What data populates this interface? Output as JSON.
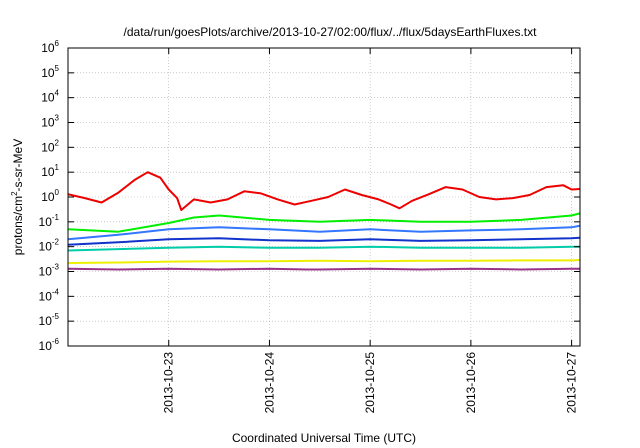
{
  "chart_data": {
    "type": "line",
    "title": "/data/run/goesPlots/archive/2013-10-27/02:00/flux/../flux/5daysEarthFluxes.txt",
    "xlabel": "Coordinated Universal Time (UTC)",
    "ylabel_base": "protons/cm",
    "ylabel_sup": "2",
    "ylabel_rest": "-s-sr-MeV",
    "x_range": [
      "2013-10-22T00:00",
      "2013-10-27T02:00"
    ],
    "y_scale": "log",
    "ylim": [
      1e-06,
      1000000.0
    ],
    "y_ticks": [
      {
        "base": "10",
        "exp": "-6",
        "value": 1e-06
      },
      {
        "base": "10",
        "exp": "-5",
        "value": 1e-05
      },
      {
        "base": "10",
        "exp": "-4",
        "value": 0.0001
      },
      {
        "base": "10",
        "exp": "-3",
        "value": 0.001
      },
      {
        "base": "10",
        "exp": "-2",
        "value": 0.01
      },
      {
        "base": "10",
        "exp": "-1",
        "value": 0.1
      },
      {
        "base": "10",
        "exp": "0",
        "value": 1
      },
      {
        "base": "10",
        "exp": "1",
        "value": 10.0
      },
      {
        "base": "10",
        "exp": "2",
        "value": 100.0
      },
      {
        "base": "10",
        "exp": "3",
        "value": 1000.0
      },
      {
        "base": "10",
        "exp": "4",
        "value": 10000.0
      },
      {
        "base": "10",
        "exp": "5",
        "value": 100000.0
      },
      {
        "base": "10",
        "exp": "6",
        "value": 1000000.0
      }
    ],
    "x_ticks": [
      {
        "label": "2013-10-23",
        "date": "2013-10-23T00:00"
      },
      {
        "label": "2013-10-24",
        "date": "2013-10-24T00:00"
      },
      {
        "label": "2013-10-25",
        "date": "2013-10-25T00:00"
      },
      {
        "label": "2013-10-26",
        "date": "2013-10-26T00:00"
      },
      {
        "label": "2013-10-27",
        "date": "2013-10-27T00:00"
      }
    ],
    "grid": true,
    "series": [
      {
        "color": "#ee0000",
        "points": [
          [
            "2013-10-22T00:00",
            1.3
          ],
          [
            "2013-10-22T04:00",
            0.9
          ],
          [
            "2013-10-22T08:00",
            0.6
          ],
          [
            "2013-10-22T12:00",
            1.5
          ],
          [
            "2013-10-22T16:00",
            5.0
          ],
          [
            "2013-10-22T19:00",
            10.0
          ],
          [
            "2013-10-22T22:00",
            6.0
          ],
          [
            "2013-10-23T00:00",
            2.0
          ],
          [
            "2013-10-23T02:00",
            0.9
          ],
          [
            "2013-10-23T03:00",
            0.3
          ],
          [
            "2013-10-23T06:00",
            0.8
          ],
          [
            "2013-10-23T10:00",
            0.6
          ],
          [
            "2013-10-23T14:00",
            0.8
          ],
          [
            "2013-10-23T18:00",
            1.7
          ],
          [
            "2013-10-23T22:00",
            1.4
          ],
          [
            "2013-10-24T02:00",
            0.8
          ],
          [
            "2013-10-24T06:00",
            0.5
          ],
          [
            "2013-10-24T10:00",
            0.7
          ],
          [
            "2013-10-24T14:00",
            1.0
          ],
          [
            "2013-10-24T18:00",
            2.0
          ],
          [
            "2013-10-24T22:00",
            1.2
          ],
          [
            "2013-10-25T02:00",
            0.8
          ],
          [
            "2013-10-25T05:00",
            0.5
          ],
          [
            "2013-10-25T07:00",
            0.35
          ],
          [
            "2013-10-25T10:00",
            0.7
          ],
          [
            "2013-10-25T14:00",
            1.3
          ],
          [
            "2013-10-25T18:00",
            2.5
          ],
          [
            "2013-10-25T22:00",
            2.0
          ],
          [
            "2013-10-26T02:00",
            1.0
          ],
          [
            "2013-10-26T06:00",
            0.8
          ],
          [
            "2013-10-26T10:00",
            0.9
          ],
          [
            "2013-10-26T14:00",
            1.2
          ],
          [
            "2013-10-26T18:00",
            2.5
          ],
          [
            "2013-10-26T22:00",
            3.0
          ],
          [
            "2013-10-27T00:00",
            2.0
          ],
          [
            "2013-10-27T02:00",
            2.1
          ]
        ]
      },
      {
        "color": "#00ee00",
        "points": [
          [
            "2013-10-22T00:00",
            0.05
          ],
          [
            "2013-10-22T12:00",
            0.04
          ],
          [
            "2013-10-23T00:00",
            0.09
          ],
          [
            "2013-10-23T06:00",
            0.15
          ],
          [
            "2013-10-23T12:00",
            0.18
          ],
          [
            "2013-10-24T00:00",
            0.12
          ],
          [
            "2013-10-24T12:00",
            0.1
          ],
          [
            "2013-10-25T00:00",
            0.12
          ],
          [
            "2013-10-25T12:00",
            0.1
          ],
          [
            "2013-10-26T00:00",
            0.1
          ],
          [
            "2013-10-26T12:00",
            0.12
          ],
          [
            "2013-10-27T00:00",
            0.18
          ],
          [
            "2013-10-27T02:00",
            0.22
          ]
        ]
      },
      {
        "color": "#3377ff",
        "points": [
          [
            "2013-10-22T00:00",
            0.02
          ],
          [
            "2013-10-22T12:00",
            0.03
          ],
          [
            "2013-10-23T00:00",
            0.05
          ],
          [
            "2013-10-23T12:00",
            0.06
          ],
          [
            "2013-10-24T00:00",
            0.05
          ],
          [
            "2013-10-24T12:00",
            0.04
          ],
          [
            "2013-10-25T00:00",
            0.05
          ],
          [
            "2013-10-25T12:00",
            0.04
          ],
          [
            "2013-10-26T00:00",
            0.045
          ],
          [
            "2013-10-26T12:00",
            0.05
          ],
          [
            "2013-10-27T00:00",
            0.06
          ],
          [
            "2013-10-27T02:00",
            0.07
          ]
        ]
      },
      {
        "color": "#1133cc",
        "points": [
          [
            "2013-10-22T00:00",
            0.012
          ],
          [
            "2013-10-22T12:00",
            0.015
          ],
          [
            "2013-10-23T00:00",
            0.02
          ],
          [
            "2013-10-23T12:00",
            0.022
          ],
          [
            "2013-10-24T00:00",
            0.018
          ],
          [
            "2013-10-24T12:00",
            0.017
          ],
          [
            "2013-10-25T00:00",
            0.02
          ],
          [
            "2013-10-25T12:00",
            0.017
          ],
          [
            "2013-10-26T00:00",
            0.018
          ],
          [
            "2013-10-26T12:00",
            0.02
          ],
          [
            "2013-10-27T00:00",
            0.022
          ],
          [
            "2013-10-27T02:00",
            0.023
          ]
        ]
      },
      {
        "color": "#00ccaa",
        "points": [
          [
            "2013-10-22T00:00",
            0.007
          ],
          [
            "2013-10-22T12:00",
            0.008
          ],
          [
            "2013-10-23T00:00",
            0.009
          ],
          [
            "2013-10-23T12:00",
            0.01
          ],
          [
            "2013-10-24T00:00",
            0.009
          ],
          [
            "2013-10-24T12:00",
            0.009
          ],
          [
            "2013-10-25T00:00",
            0.01
          ],
          [
            "2013-10-25T12:00",
            0.009
          ],
          [
            "2013-10-26T00:00",
            0.009
          ],
          [
            "2013-10-26T12:00",
            0.009
          ],
          [
            "2013-10-27T00:00",
            0.01
          ],
          [
            "2013-10-27T02:00",
            0.01
          ]
        ]
      },
      {
        "color": "#eeee00",
        "points": [
          [
            "2013-10-22T00:00",
            0.0022
          ],
          [
            "2013-10-22T12:00",
            0.0023
          ],
          [
            "2013-10-23T00:00",
            0.0025
          ],
          [
            "2013-10-23T12:00",
            0.0026
          ],
          [
            "2013-10-24T00:00",
            0.0026
          ],
          [
            "2013-10-24T12:00",
            0.0027
          ],
          [
            "2013-10-25T00:00",
            0.0026
          ],
          [
            "2013-10-25T12:00",
            0.0027
          ],
          [
            "2013-10-26T00:00",
            0.0027
          ],
          [
            "2013-10-26T12:00",
            0.0028
          ],
          [
            "2013-10-27T00:00",
            0.0028
          ],
          [
            "2013-10-27T02:00",
            0.0029
          ]
        ]
      },
      {
        "color": "#993388",
        "points": [
          [
            "2013-10-22T00:00",
            0.0013
          ],
          [
            "2013-10-22T12:00",
            0.0012
          ],
          [
            "2013-10-23T00:00",
            0.0013
          ],
          [
            "2013-10-23T12:00",
            0.0012
          ],
          [
            "2013-10-24T00:00",
            0.0013
          ],
          [
            "2013-10-24T09:00",
            0.0012
          ],
          [
            "2013-10-24T12:00",
            0.0012
          ],
          [
            "2013-10-25T00:00",
            0.0013
          ],
          [
            "2013-10-25T12:00",
            0.0012
          ],
          [
            "2013-10-26T00:00",
            0.0013
          ],
          [
            "2013-10-26T12:00",
            0.0012
          ],
          [
            "2013-10-27T00:00",
            0.0013
          ],
          [
            "2013-10-27T02:00",
            0.0013
          ]
        ]
      }
    ]
  }
}
